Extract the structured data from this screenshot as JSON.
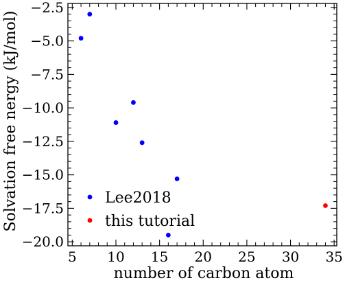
{
  "chart_data": {
    "type": "scatter",
    "title": "",
    "xlabel": "number of carbon atom",
    "ylabel": "Solvation free nergy (kJ/mol)",
    "xlim": [
      4.5,
      35.3
    ],
    "ylim": [
      -20.3,
      -2.2
    ],
    "x_ticks": [
      5,
      10,
      15,
      20,
      25,
      30,
      35
    ],
    "x_tick_labels": [
      "5",
      "10",
      "15",
      "20",
      "25",
      "30",
      "35"
    ],
    "y_ticks": [
      -2.5,
      -5.0,
      -7.5,
      -10.0,
      -12.5,
      -15.0,
      -17.5,
      -20.0
    ],
    "y_tick_labels": [
      "−2.5",
      "−5.0",
      "−7.5",
      "−10.0",
      "−12.5",
      "−15.0",
      "−17.5",
      "−20.0"
    ],
    "grid": false,
    "legend_position": "lower-left",
    "series": [
      {
        "name": "Lee2018",
        "color": "#0000ff",
        "points": [
          {
            "x": 6,
            "y": -4.8
          },
          {
            "x": 7,
            "y": -3.0
          },
          {
            "x": 10,
            "y": -11.1
          },
          {
            "x": 12,
            "y": -9.6
          },
          {
            "x": 13,
            "y": -12.6
          },
          {
            "x": 16,
            "y": -19.5
          },
          {
            "x": 17,
            "y": -15.3
          }
        ]
      },
      {
        "name": "this tutorial",
        "color": "#ff0000",
        "points": [
          {
            "x": 34,
            "y": -17.3
          }
        ]
      }
    ]
  }
}
